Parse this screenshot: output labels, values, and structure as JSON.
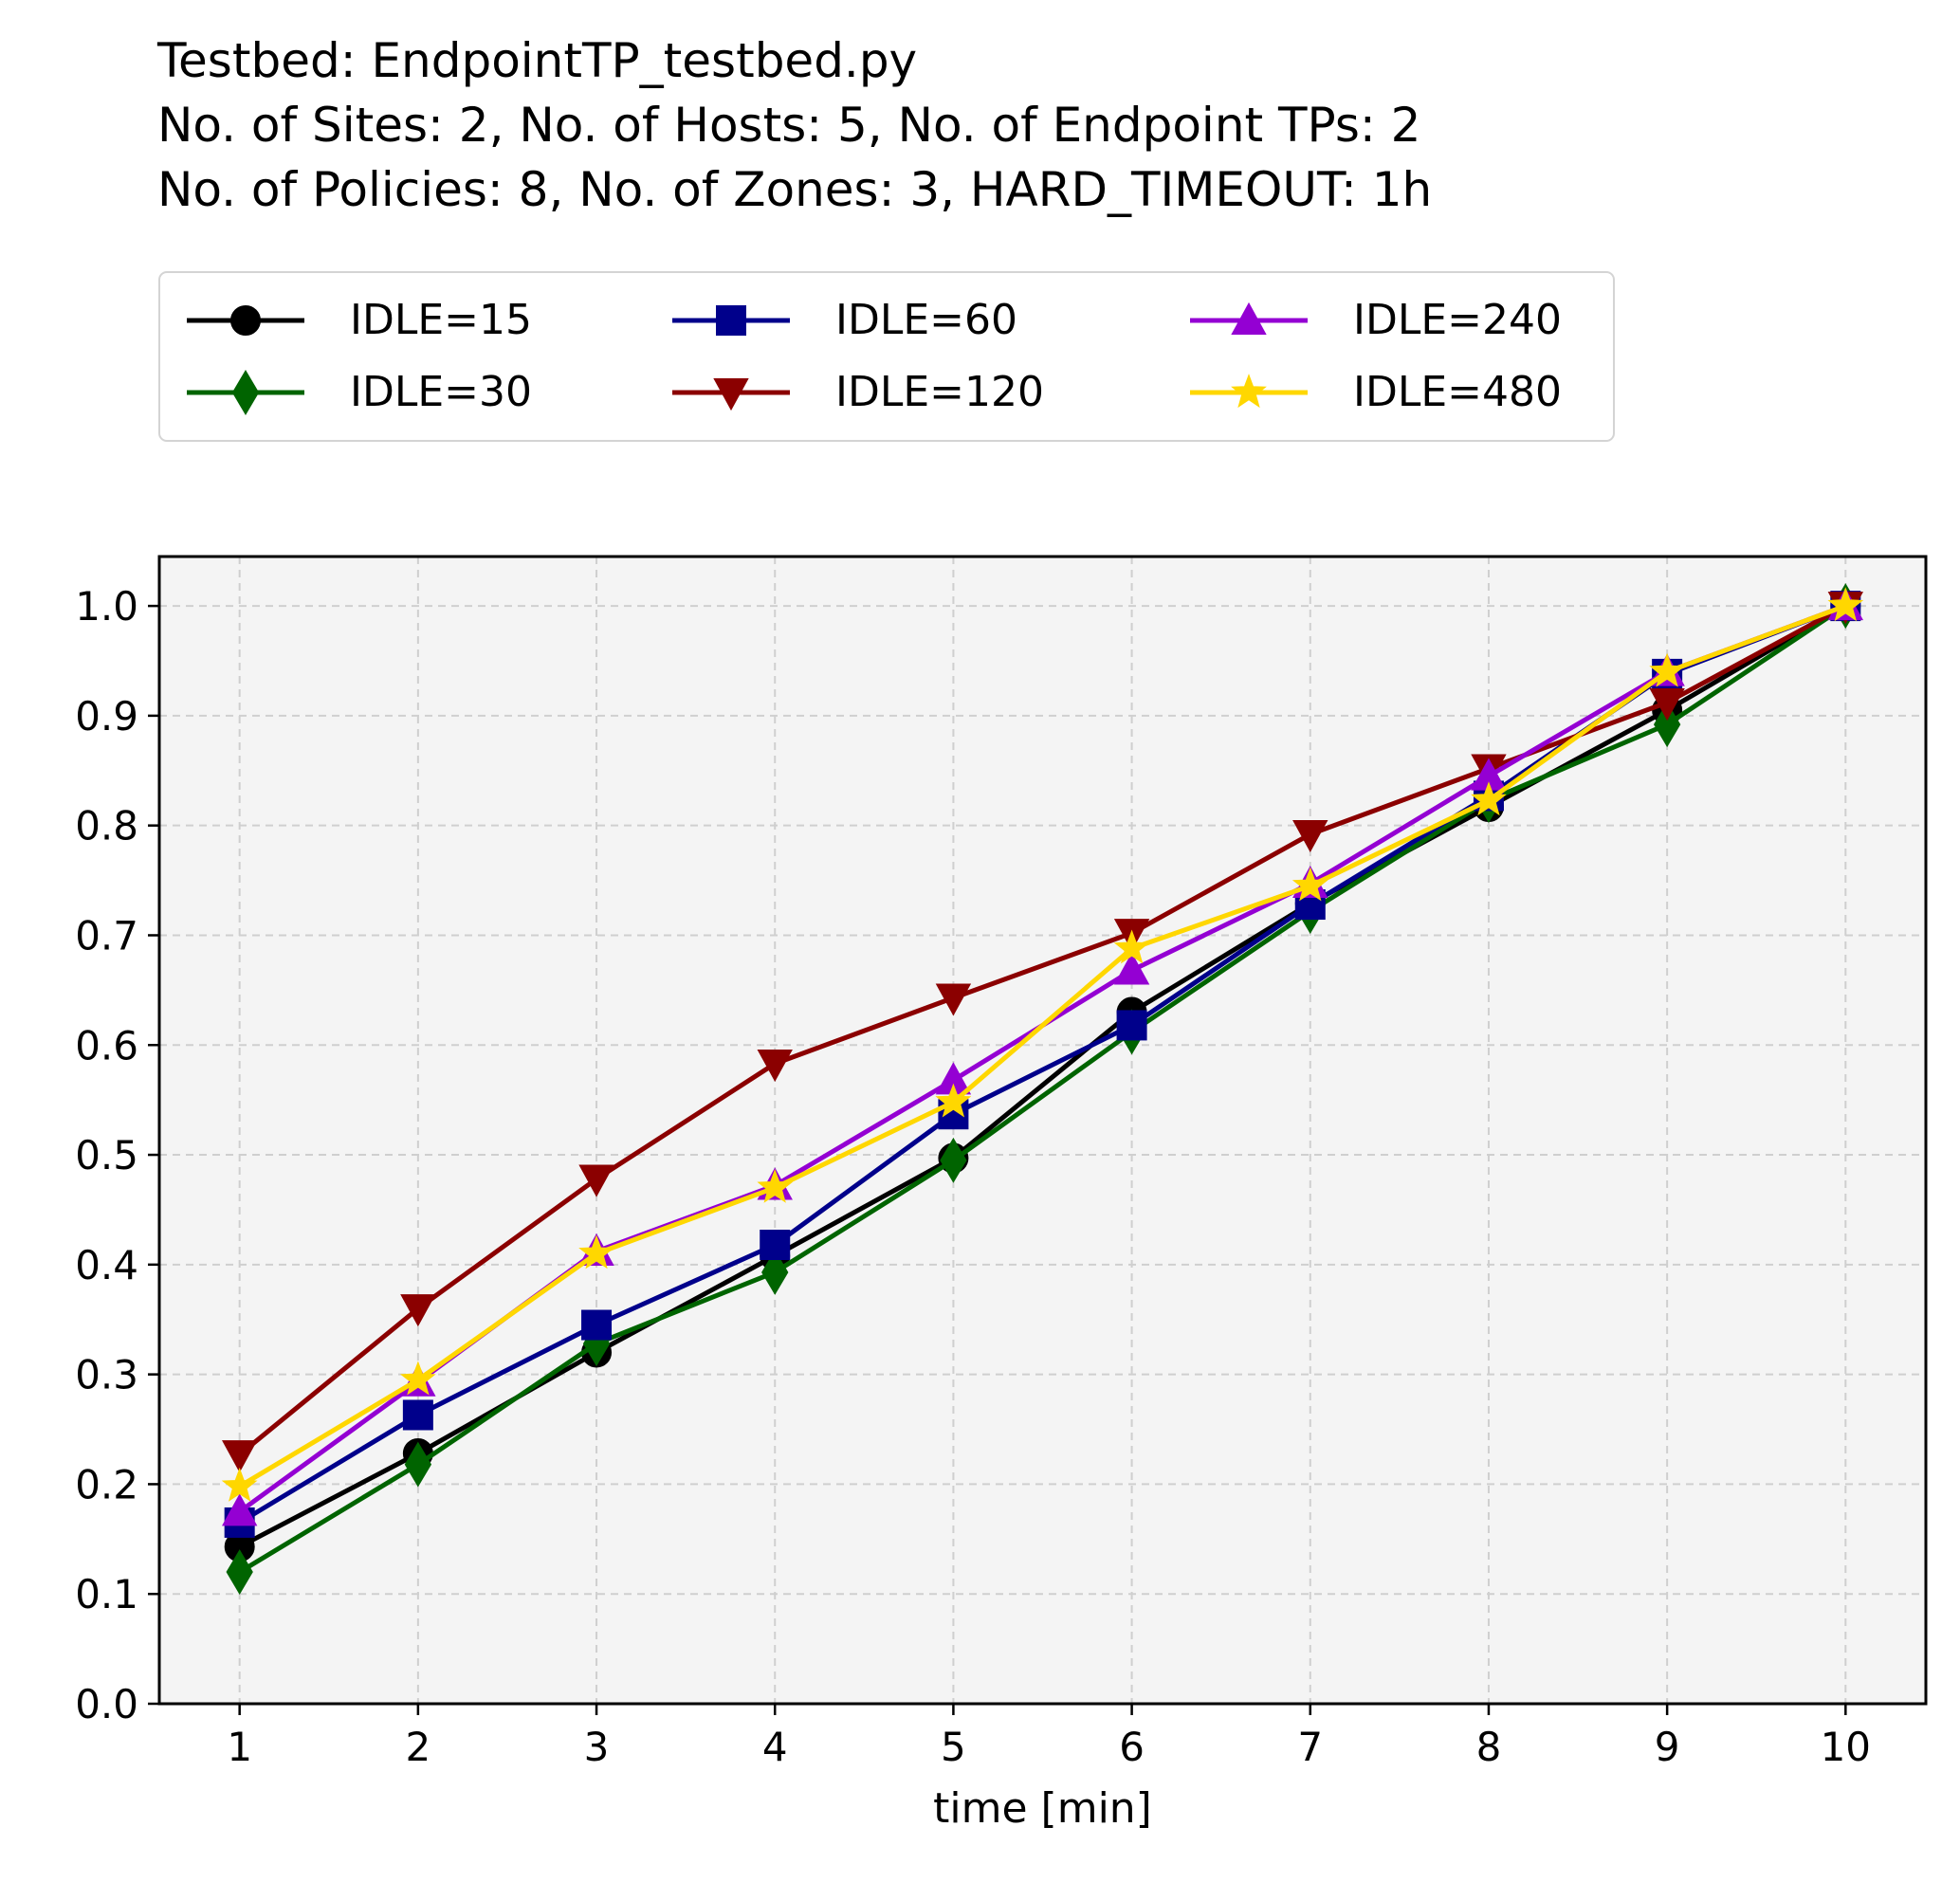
{
  "chart_data": {
    "type": "line",
    "title_lines": [
      "Testbed: EndpointTP_testbed.py",
      "No. of Sites: 2, No. of Hosts: 5, No. of Endpoint TPs: 2",
      "No. of Policies: 8, No. of Zones: 3, HARD_TIMEOUT: 1h"
    ],
    "xlabel": "time [min]",
    "ylabel": "",
    "x": [
      1,
      2,
      3,
      4,
      5,
      6,
      7,
      8,
      9,
      10
    ],
    "xlim": [
      0.55,
      10.45
    ],
    "ylim": [
      0.0,
      1.045
    ],
    "xticks": [
      1,
      2,
      3,
      4,
      5,
      6,
      7,
      8,
      9,
      10
    ],
    "yticks": [
      "0.0",
      "0.1",
      "0.2",
      "0.3",
      "0.4",
      "0.5",
      "0.6",
      "0.7",
      "0.8",
      "0.9",
      "1.0"
    ],
    "grid": true,
    "legend_position": "top-outside",
    "background_color": "#f4f4f4",
    "series": [
      {
        "name": "IDLE=15",
        "color": "#000000",
        "marker": "circle",
        "values": [
          0.143,
          0.228,
          0.32,
          0.408,
          0.497,
          0.63,
          0.729,
          0.817,
          0.905,
          1.0
        ]
      },
      {
        "name": "IDLE=30",
        "color": "#006400",
        "marker": "thin-diamond",
        "values": [
          0.12,
          0.218,
          0.328,
          0.393,
          0.495,
          0.612,
          0.722,
          0.823,
          0.892,
          1.0
        ]
      },
      {
        "name": "IDLE=60",
        "color": "#00008b",
        "marker": "square",
        "values": [
          0.165,
          0.263,
          0.345,
          0.418,
          0.537,
          0.618,
          0.728,
          0.827,
          0.938,
          1.0
        ]
      },
      {
        "name": "IDLE=120",
        "color": "#8b0000",
        "marker": "triangle-down",
        "values": [
          0.227,
          0.36,
          0.478,
          0.583,
          0.643,
          0.702,
          0.792,
          0.852,
          0.912,
          1.0
        ]
      },
      {
        "name": "IDLE=240",
        "color": "#9400d3",
        "marker": "triangle-up",
        "values": [
          0.175,
          0.293,
          0.412,
          0.472,
          0.568,
          0.668,
          0.747,
          0.845,
          0.94,
          1.0
        ]
      },
      {
        "name": "IDLE=480",
        "color": "#ffd700",
        "marker": "star",
        "values": [
          0.198,
          0.295,
          0.41,
          0.47,
          0.548,
          0.688,
          0.745,
          0.823,
          0.94,
          1.0
        ]
      }
    ]
  }
}
